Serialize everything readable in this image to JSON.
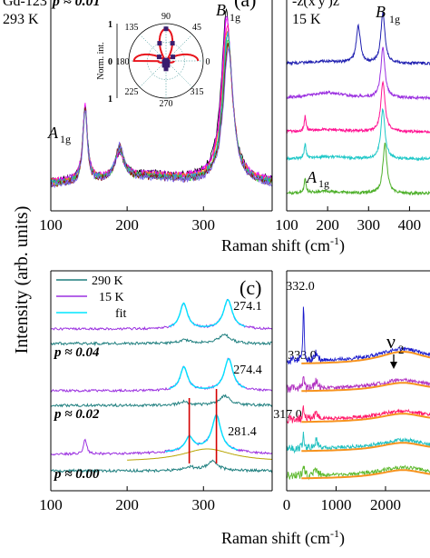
{
  "figure": {
    "ylabel": "Intensity (arb. units)",
    "xlabel": "Raman shift (cm",
    "xlabel_sup": "-1",
    "xlabel_close": ")"
  },
  "chart_data": [
    {
      "panel": "a",
      "type": "line",
      "panel_label": "(a)",
      "header_left": "Gd-123",
      "header_p": "p ≈ 0.01",
      "temperature": "293 K",
      "xlim": [
        100,
        390
      ],
      "xticks": [
        100,
        200,
        300
      ],
      "yticks": [],
      "peak_labels": [
        {
          "text": "A",
          "sub": "1g",
          "x": 145
        },
        {
          "text": "B",
          "sub": "1g",
          "x": 330
        }
      ],
      "peaks_cm1": [
        145,
        190,
        330
      ],
      "series_colors": [
        "#000000",
        "#9400d3",
        "#ff00ff",
        "#ff1493",
        "#ff8c00",
        "#1e90ff",
        "#20b2aa",
        "#32cd32",
        "#8b0000",
        "#7b68ee"
      ],
      "inset": {
        "type": "polar",
        "ylabel": "Norm. int.",
        "angle_labels": [
          "90",
          "45",
          "0",
          "315",
          "270",
          "225",
          "180",
          "135"
        ],
        "radial_labels": [
          "1",
          "0",
          "1"
        ],
        "fit_color": "#e8141c",
        "point_color": "#3a1d6e",
        "points_deg": [
          30,
          50,
          70,
          90,
          110,
          130,
          150,
          210,
          230,
          250,
          270,
          290,
          310,
          330
        ],
        "model": "cos^2(2θ)"
      }
    },
    {
      "panel": "b",
      "type": "line",
      "polarization": "-z(x'y')z",
      "temperature": "15 K",
      "xlim": [
        100,
        450
      ],
      "xticks": [
        100,
        200,
        300,
        400
      ],
      "peak_labels": [
        {
          "text": "B",
          "sub": "1g",
          "x": 335
        },
        {
          "text": "A",
          "sub": "1g",
          "x": 145
        }
      ],
      "traces": [
        {
          "color": "#1f1fb0",
          "peaks": [
            275,
            335
          ]
        },
        {
          "color": "#9b30e0",
          "peaks": [
            335
          ]
        },
        {
          "color": "#ff1493",
          "peaks": [
            145,
            335
          ]
        },
        {
          "color": "#20c8c8",
          "peaks": [
            145,
            335
          ]
        },
        {
          "color": "#4caf28",
          "peaks": [
            145,
            340
          ]
        }
      ]
    },
    {
      "panel": "c",
      "type": "line",
      "panel_label": "(c)",
      "xlim": [
        100,
        390
      ],
      "xticks": [
        100,
        200,
        300
      ],
      "legend": [
        {
          "label": "290 K",
          "color": "#1f7f7f"
        },
        {
          "label": "15 K",
          "color": "#9b30e0"
        },
        {
          "label": "fit",
          "color": "#00e5ff"
        }
      ],
      "dopings": [
        {
          "label": "p ≈ 0.04",
          "peaks": [
            274.1,
            332.0
          ],
          "peak_text": [
            "274.1",
            "332.0"
          ]
        },
        {
          "label": "p ≈ 0.02",
          "peaks": [
            274.4,
            333.0
          ],
          "peak_text": [
            "274.4",
            "333.0"
          ]
        },
        {
          "label": "p ≈ 0.00",
          "peaks": [
            281.4,
            317.0
          ],
          "peak_text": [
            "281.4",
            "317.0"
          ]
        }
      ],
      "marker_lines_cm1": [
        281.4,
        317.0
      ],
      "marker_color": "#d40000",
      "background_fit_color": "#b8a400"
    },
    {
      "panel": "d",
      "type": "line",
      "xlim": [
        0,
        2900
      ],
      "xticks": [
        0,
        1000,
        2000
      ],
      "annotation": "ν",
      "annotation_sub": "2",
      "annotation_x": 2350,
      "traces": [
        {
          "color": "#1a1acc"
        },
        {
          "color": "#b030c0"
        },
        {
          "color": "#ff1a6a"
        },
        {
          "color": "#20c0c0"
        },
        {
          "color": "#5cb82c"
        }
      ],
      "fit_color": "#f7931e"
    }
  ]
}
